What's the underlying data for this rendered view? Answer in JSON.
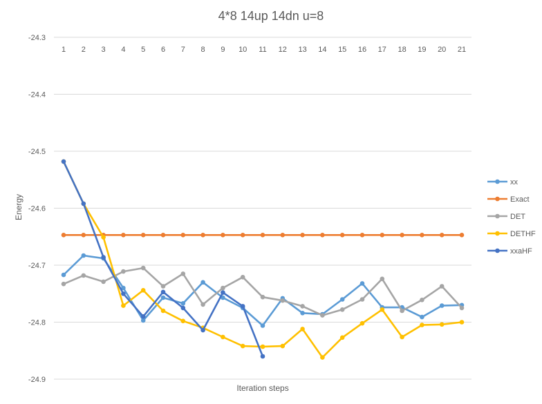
{
  "chart_data": {
    "type": "line",
    "title": "4*8 14up 14dn u=8",
    "xlabel": "Iteration steps",
    "ylabel": "Energy",
    "categories": [
      "1",
      "2",
      "3",
      "4",
      "5",
      "6",
      "7",
      "8",
      "9",
      "10",
      "11",
      "12",
      "13",
      "14",
      "15",
      "16",
      "17",
      "18",
      "19",
      "20",
      "21"
    ],
    "yticks": [
      "-24.3",
      "-24.4",
      "-24.5",
      "-24.6",
      "-24.7",
      "-24.8",
      "-24.9"
    ],
    "ylim": [
      -24.9,
      -24.3
    ],
    "ytick_values": [
      -24.3,
      -24.4,
      -24.5,
      -24.6,
      -24.7,
      -24.8,
      -24.9
    ],
    "grid": true,
    "legend_position": "right",
    "series": [
      {
        "name": "xx",
        "color": "#5B9BD5",
        "values": [
          -24.717,
          -24.683,
          -24.688,
          -24.74,
          -24.797,
          -24.757,
          -24.767,
          -24.73,
          -24.757,
          -24.775,
          -24.806,
          -24.758,
          -24.784,
          -24.786,
          -24.76,
          -24.732,
          -24.774,
          -24.774,
          -24.791,
          -24.771,
          -24.77
        ]
      },
      {
        "name": "Exact",
        "color": "#ED7D31",
        "values": [
          -24.647,
          -24.647,
          -24.647,
          -24.647,
          -24.647,
          -24.647,
          -24.647,
          -24.647,
          -24.647,
          -24.647,
          -24.647,
          -24.647,
          -24.647,
          -24.647,
          -24.647,
          -24.647,
          -24.647,
          -24.647,
          -24.647,
          -24.647,
          -24.647
        ]
      },
      {
        "name": "DET",
        "color": "#A5A5A5",
        "values": [
          -24.733,
          -24.718,
          -24.729,
          -24.711,
          -24.705,
          -24.737,
          -24.715,
          -24.769,
          -24.74,
          -24.721,
          -24.756,
          -24.762,
          -24.772,
          -24.788,
          -24.778,
          -24.76,
          -24.724,
          -24.78,
          -24.761,
          -24.737,
          -24.775
        ]
      },
      {
        "name": "DETHF",
        "color": "#FFC000",
        "values": [
          -24.518,
          -24.592,
          -24.651,
          -24.771,
          -24.744,
          -24.78,
          -24.798,
          -24.81,
          -24.826,
          -24.842,
          -24.843,
          -24.842,
          -24.812,
          -24.862,
          -24.827,
          -24.802,
          -24.778,
          -24.826,
          -24.805,
          -24.804,
          -24.8
        ]
      },
      {
        "name": "xxaHF",
        "color": "#4472C4",
        "values": [
          -24.518,
          -24.592,
          -24.686,
          -24.75,
          -24.79,
          -24.747,
          -24.775,
          -24.814,
          -24.748,
          -24.772,
          -24.86,
          null,
          null,
          null,
          null,
          null,
          null,
          null,
          null,
          null,
          null
        ]
      }
    ]
  }
}
